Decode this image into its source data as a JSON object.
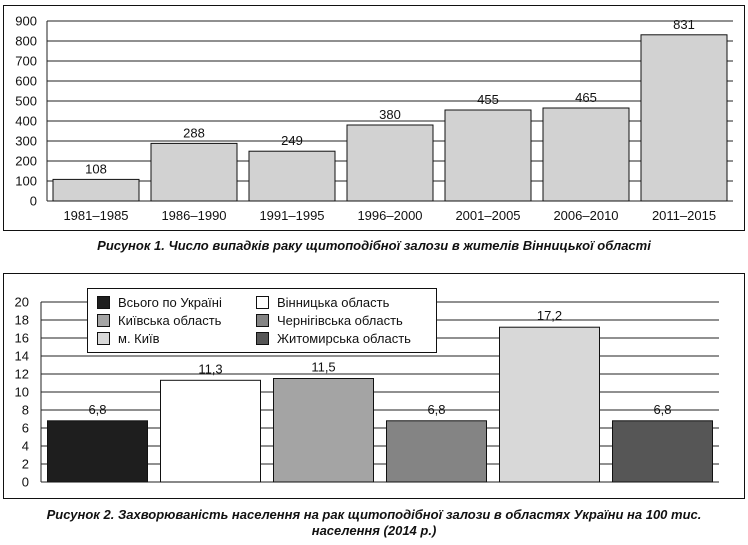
{
  "figure1": {
    "caption": "Рисунок 1. Число випадків раку щитоподібної залози в жителів Вінницької області",
    "chart_data": {
      "type": "bar",
      "categories": [
        "1981–1985",
        "1986–1990",
        "1991–1995",
        "1996–2000",
        "2001–2005",
        "2006–2010",
        "2011–2015"
      ],
      "values": [
        108,
        288,
        249,
        380,
        455,
        465,
        831
      ],
      "value_labels": [
        "108",
        "288",
        "249",
        "380",
        "455",
        "465",
        "831"
      ],
      "yticks": [
        "0",
        "100",
        "200",
        "300",
        "400",
        "500",
        "600",
        "700",
        "800",
        "900"
      ],
      "ylim": [
        0,
        900
      ],
      "grid": true,
      "bar_color": "#d2d2d2"
    }
  },
  "figure2": {
    "caption_line1": "Рисунок 2. Захворюваність населення на рак щитоподібної залози в областях України на 100 тис.",
    "caption_line2": "населення (2014 р.)",
    "chart_data": {
      "type": "bar",
      "series": [
        {
          "name": "Всього по Україні",
          "value": 6.8,
          "label": "6,8",
          "color": "#1e1e1e"
        },
        {
          "name": "Вінницька область",
          "value": 11.3,
          "label": "11,3",
          "color": "#ffffff"
        },
        {
          "name": "Київська область",
          "value": 11.5,
          "label": "11,5",
          "color": "#a4a4a4"
        },
        {
          "name": "Чернігівська область",
          "value": 6.8,
          "label": "6,8",
          "color": "#848484"
        },
        {
          "name": "м. Київ",
          "value": 17.2,
          "label": "17,2",
          "color": "#d8d8d8"
        },
        {
          "name": "Житомирська область",
          "value": 6.8,
          "label": "6,8",
          "color": "#565656"
        }
      ],
      "legend_order": [
        0,
        1,
        2,
        3,
        4,
        5
      ],
      "yticks": [
        "0",
        "2",
        "4",
        "6",
        "8",
        "10",
        "12",
        "14",
        "16",
        "18",
        "20"
      ],
      "ylim": [
        0,
        20
      ],
      "grid": true,
      "legend_position": "top-left"
    }
  }
}
